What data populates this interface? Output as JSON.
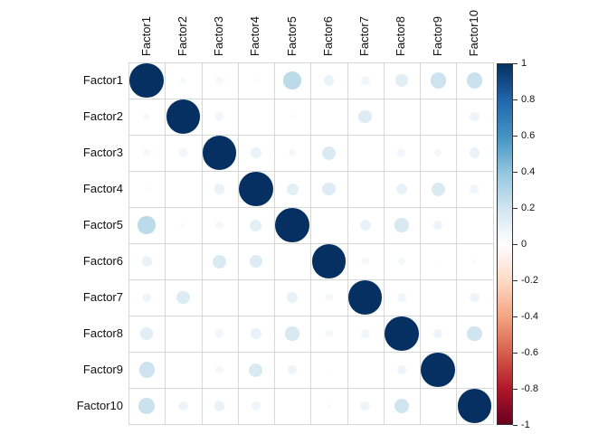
{
  "chart_data": {
    "type": "correlation_matrix_bubble",
    "title": "",
    "labels": [
      "Factor1",
      "Factor2",
      "Factor3",
      "Factor4",
      "Factor5",
      "Factor6",
      "Factor7",
      "Factor8",
      "Factor9",
      "Factor10"
    ],
    "matrix": [
      [
        1.0,
        0.04,
        0.05,
        0.02,
        0.27,
        0.09,
        0.07,
        0.13,
        0.21,
        0.22
      ],
      [
        0.04,
        1.0,
        0.06,
        0.01,
        0.025,
        0.004,
        0.15,
        0.004,
        0.005,
        0.08
      ],
      [
        0.05,
        0.06,
        1.0,
        0.095,
        0.055,
        0.16,
        0.007,
        0.06,
        0.055,
        0.09
      ],
      [
        0.02,
        0.01,
        0.095,
        1.0,
        0.12,
        0.15,
        0.008,
        0.1,
        0.16,
        0.07
      ],
      [
        0.27,
        0.025,
        0.055,
        0.12,
        1.0,
        0.005,
        0.1,
        0.17,
        0.08,
        0.005
      ],
      [
        0.09,
        0.004,
        0.16,
        0.15,
        0.005,
        1.0,
        0.055,
        0.055,
        0.011,
        0.02
      ],
      [
        0.07,
        0.15,
        0.007,
        0.008,
        0.1,
        0.055,
        1.0,
        0.07,
        0.005,
        0.08
      ],
      [
        0.13,
        0.004,
        0.06,
        0.1,
        0.17,
        0.055,
        0.07,
        1.0,
        0.075,
        0.2
      ],
      [
        0.21,
        0.005,
        0.055,
        0.16,
        0.08,
        0.011,
        0.005,
        0.075,
        1.0,
        0.004
      ],
      [
        0.22,
        0.08,
        0.09,
        0.07,
        0.005,
        0.02,
        0.08,
        0.2,
        0.004,
        1.0
      ]
    ],
    "value_range": [
      -1,
      1
    ],
    "legend": {
      "position": "right",
      "tick_labels": [
        "1",
        "0.8",
        "0.6",
        "0.4",
        "0.2",
        "0",
        "-0.2",
        "-0.4",
        "-0.6",
        "-0.8",
        "-1"
      ]
    },
    "palette": {
      "name": "RdBu",
      "positive_stops": [
        "#FFFFFF",
        "#D1E5F0",
        "#92C5DE",
        "#4393C3",
        "#2166AC",
        "#053061"
      ],
      "negative_stops": [
        "#FFFFFF",
        "#FDDBC7",
        "#F4A582",
        "#D6604D",
        "#B2182B",
        "#67001F"
      ]
    },
    "colors": {
      "background": "#ffffff",
      "gridline": "#d6d6d6",
      "label_text": "#111111",
      "max_positive": "#053061"
    },
    "grid_on": true
  }
}
